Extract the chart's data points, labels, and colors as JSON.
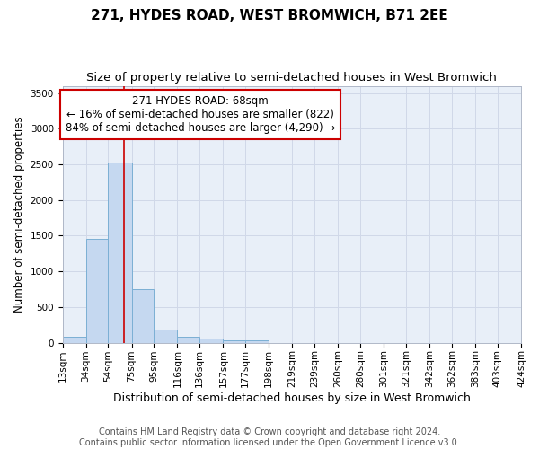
{
  "title": "271, HYDES ROAD, WEST BROMWICH, B71 2EE",
  "subtitle": "Size of property relative to semi-detached houses in West Bromwich",
  "xlabel": "Distribution of semi-detached houses by size in West Bromwich",
  "ylabel": "Number of semi-detached properties",
  "footer_line1": "Contains HM Land Registry data © Crown copyright and database right 2024.",
  "footer_line2": "Contains public sector information licensed under the Open Government Licence v3.0.",
  "annotation_line1": "271 HYDES ROAD: 68sqm",
  "annotation_line2": "← 16% of semi-detached houses are smaller (822)",
  "annotation_line3": "84% of semi-detached houses are larger (4,290) →",
  "property_size": 68,
  "bin_edges": [
    13,
    34,
    54,
    75,
    95,
    116,
    136,
    157,
    177,
    198,
    219,
    239,
    260,
    280,
    301,
    321,
    342,
    362,
    383,
    403,
    424
  ],
  "bar_values": [
    80,
    1450,
    2530,
    750,
    190,
    85,
    55,
    35,
    30,
    0,
    0,
    0,
    0,
    0,
    0,
    0,
    0,
    0,
    0,
    0
  ],
  "bar_color": "#c5d8f0",
  "bar_edge_color": "#7bafd4",
  "vline_color": "#cc0000",
  "grid_color": "#d0d8e8",
  "background_color": "#e8eff8",
  "title_fontsize": 11,
  "subtitle_fontsize": 9.5,
  "ylabel_fontsize": 8.5,
  "xlabel_fontsize": 9,
  "tick_fontsize": 7.5,
  "annotation_fontsize": 8.5,
  "footer_fontsize": 7,
  "ylim": [
    0,
    3600
  ],
  "yticks": [
    0,
    500,
    1000,
    1500,
    2000,
    2500,
    3000,
    3500
  ]
}
